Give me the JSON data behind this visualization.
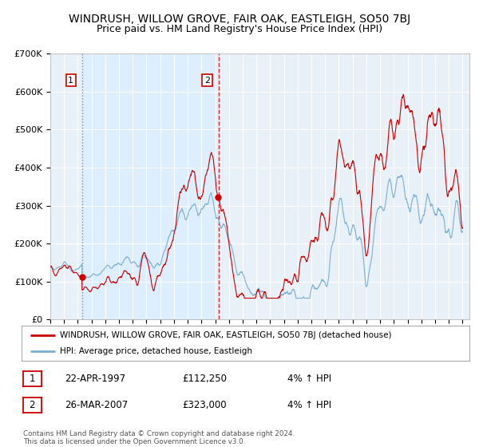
{
  "title": "WINDRUSH, WILLOW GROVE, FAIR OAK, EASTLEIGH, SO50 7BJ",
  "subtitle": "Price paid vs. HM Land Registry's House Price Index (HPI)",
  "legend_line1": "WINDRUSH, WILLOW GROVE, FAIR OAK, EASTLEIGH, SO50 7BJ (detached house)",
  "legend_line2": "HPI: Average price, detached house, Eastleigh",
  "sale1_label": "1",
  "sale1_date": "22-APR-1997",
  "sale1_price": "£112,250",
  "sale1_hpi": "4% ↑ HPI",
  "sale2_label": "2",
  "sale2_date": "26-MAR-2007",
  "sale2_price": "£323,000",
  "sale2_hpi": "4% ↑ HPI",
  "footer": "Contains HM Land Registry data © Crown copyright and database right 2024.\nThis data is licensed under the Open Government Licence v3.0.",
  "line_color_red": "#cc0000",
  "line_color_blue": "#7ab0d4",
  "shaded_region_color": "#ddeeff",
  "point1_year": 1997.3,
  "point1_value": 112250,
  "point2_year": 2007.23,
  "point2_value": 323000,
  "ylim": [
    0,
    700000
  ],
  "background_color": "#ffffff",
  "plot_bg_color": "#e8f0f8",
  "grid_color": "#ffffff",
  "title_fontsize": 10,
  "subtitle_fontsize": 9
}
